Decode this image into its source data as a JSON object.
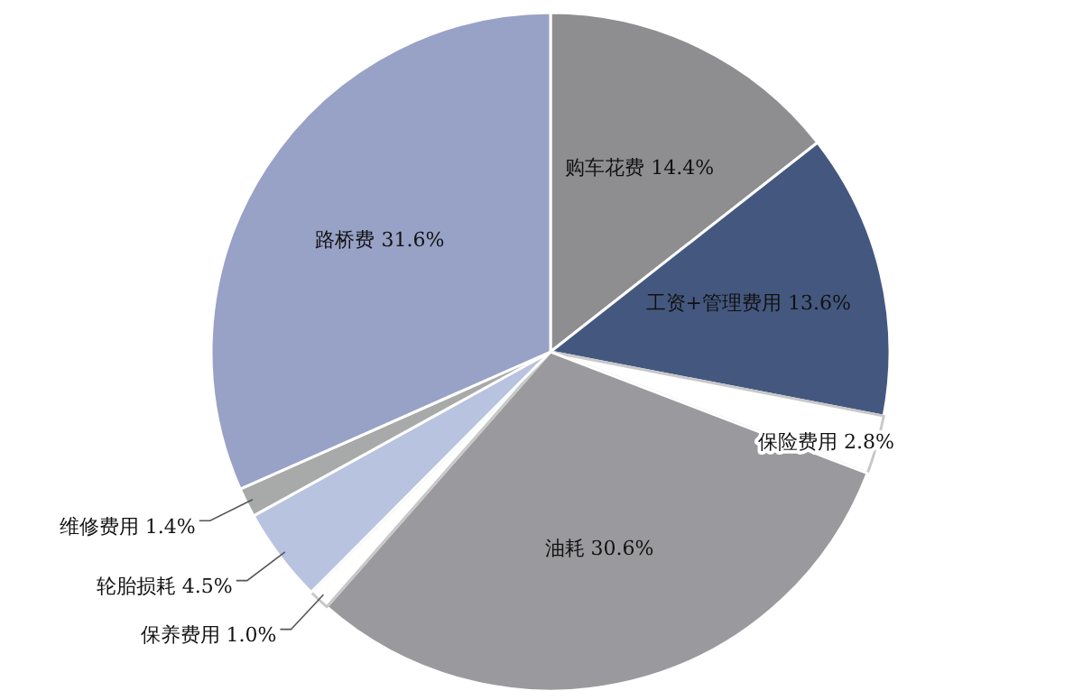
{
  "chart_data": {
    "type": "pie",
    "categories": [
      "购车花费",
      "工资+管理费用",
      "保险费用",
      "油耗",
      "保养费用",
      "轮胎损耗",
      "维修费用",
      "路桥费"
    ],
    "values": [
      14.4,
      13.6,
      2.8,
      30.6,
      1.0,
      4.5,
      1.4,
      31.6
    ],
    "value_labels": [
      "14.4%",
      "13.6%",
      "2.8%",
      "30.6%",
      "1.0%",
      "4.5%",
      "1.4%",
      "31.6%"
    ],
    "colors": [
      "#8e8e90",
      "#44587f",
      "#ffffff",
      "#9a9a9e",
      "#ffffff",
      "#b8c3df",
      "#a8a9a9",
      "#98a2c6"
    ]
  }
}
